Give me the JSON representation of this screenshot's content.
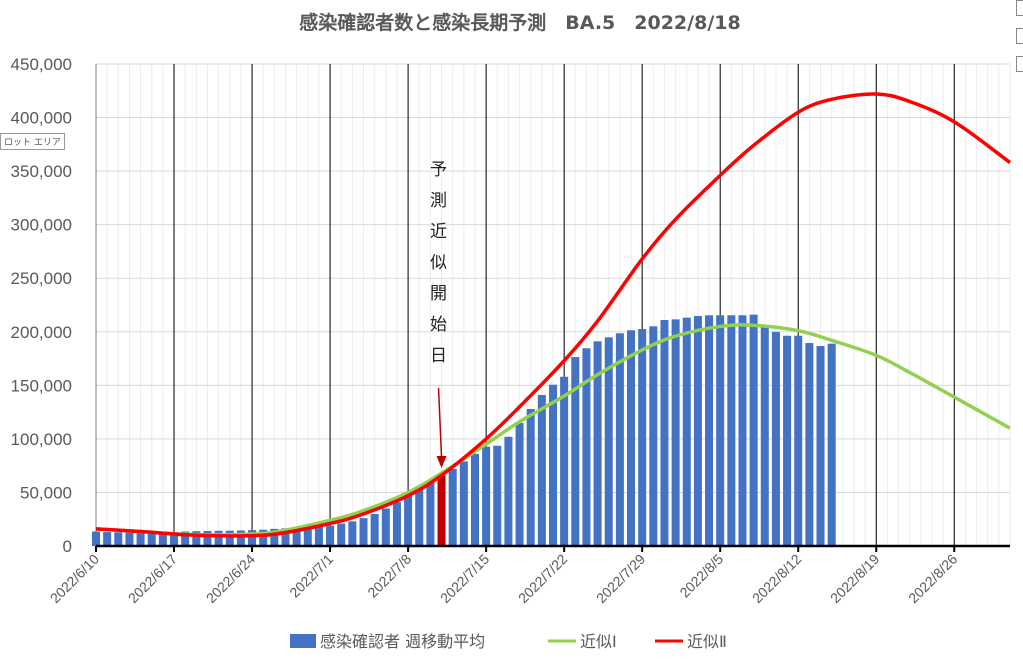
{
  "chart_data": {
    "type": "bar+line",
    "title": "感染確認者数と感染長期予測　BA.5　2022/8/18",
    "xlabel": "",
    "ylabel": "",
    "xlim": [
      "2022/6/10",
      "2022/8/31"
    ],
    "ylim": [
      0,
      450000
    ],
    "yticks": [
      "0",
      "50,000",
      "100,000",
      "150,000",
      "200,000",
      "250,000",
      "300,000",
      "350,000",
      "400,000",
      "450,000"
    ],
    "xticks": [
      "2022/6/10",
      "2022/6/17",
      "2022/6/24",
      "2022/7/1",
      "2022/7/8",
      "2022/7/15",
      "2022/7/22",
      "2022/7/29",
      "2022/8/5",
      "2022/8/12",
      "2022/8/19",
      "2022/8/26"
    ],
    "grid": true,
    "legend_position": "bottom",
    "colors": {
      "bars": "#4472c4",
      "highlight_bar": "#c00000",
      "approx1": "#92d050",
      "approx2": "#ff0000"
    },
    "series": [
      {
        "name": "感染確認者 週移動平均",
        "type": "bar",
        "points": [
          [
            "2022/6/10",
            13500
          ],
          [
            "2022/6/11",
            13000
          ],
          [
            "2022/6/12",
            12800
          ],
          [
            "2022/6/13",
            12500
          ],
          [
            "2022/6/14",
            12300
          ],
          [
            "2022/6/15",
            12200
          ],
          [
            "2022/6/16",
            12500
          ],
          [
            "2022/6/17",
            13000
          ],
          [
            "2022/6/18",
            13500
          ],
          [
            "2022/6/19",
            13800
          ],
          [
            "2022/6/20",
            14000
          ],
          [
            "2022/6/21",
            14200
          ],
          [
            "2022/6/22",
            14300
          ],
          [
            "2022/6/23",
            14500
          ],
          [
            "2022/6/24",
            14800
          ],
          [
            "2022/6/25",
            15200
          ],
          [
            "2022/6/26",
            16000
          ],
          [
            "2022/6/27",
            16500
          ],
          [
            "2022/6/28",
            17000
          ],
          [
            "2022/6/29",
            17500
          ],
          [
            "2022/6/30",
            18200
          ],
          [
            "2022/7/1",
            19000
          ],
          [
            "2022/7/2",
            21000
          ],
          [
            "2022/7/3",
            23000
          ],
          [
            "2022/7/4",
            26000
          ],
          [
            "2022/7/5",
            30000
          ],
          [
            "2022/7/6",
            35000
          ],
          [
            "2022/7/7",
            41000
          ],
          [
            "2022/7/8",
            47000
          ],
          [
            "2022/7/9",
            53000
          ],
          [
            "2022/7/10",
            59000
          ],
          [
            "2022/7/11",
            66000
          ],
          [
            "2022/7/12",
            72000
          ],
          [
            "2022/7/13",
            79000
          ],
          [
            "2022/7/14",
            86000
          ],
          [
            "2022/7/15",
            92700
          ],
          [
            "2022/7/16",
            93600
          ],
          [
            "2022/7/17",
            102000
          ],
          [
            "2022/7/18",
            114800
          ],
          [
            "2022/7/19",
            127900
          ],
          [
            "2022/7/20",
            141000
          ],
          [
            "2022/7/21",
            150600
          ],
          [
            "2022/7/22",
            158000
          ],
          [
            "2022/7/23",
            176400
          ],
          [
            "2022/7/24",
            184600
          ],
          [
            "2022/7/25",
            191100
          ],
          [
            "2022/7/26",
            194800
          ],
          [
            "2022/7/27",
            198600
          ],
          [
            "2022/7/28",
            201400
          ],
          [
            "2022/7/29",
            202600
          ],
          [
            "2022/7/30",
            205100
          ],
          [
            "2022/7/31",
            211000
          ],
          [
            "2022/8/1",
            211600
          ],
          [
            "2022/8/2",
            213200
          ],
          [
            "2022/8/3",
            214700
          ],
          [
            "2022/8/4",
            215400
          ],
          [
            "2022/8/5",
            215400
          ],
          [
            "2022/8/6",
            215400
          ],
          [
            "2022/8/7",
            215400
          ],
          [
            "2022/8/8",
            216000
          ],
          [
            "2022/8/9",
            204200
          ],
          [
            "2022/8/10",
            199800
          ],
          [
            "2022/8/11",
            196300
          ],
          [
            "2022/8/12",
            196300
          ],
          [
            "2022/8/13",
            189500
          ],
          [
            "2022/8/14",
            186700
          ],
          [
            "2022/8/15",
            188900
          ]
        ],
        "highlight": "2022/7/11"
      },
      {
        "name": "近似Ⅰ",
        "type": "line",
        "points": [
          [
            "2022/6/10",
            16000
          ],
          [
            "2022/6/14",
            13500
          ],
          [
            "2022/6/18",
            11000
          ],
          [
            "2022/6/22",
            10500
          ],
          [
            "2022/6/26",
            13000
          ],
          [
            "2022/7/1",
            24000
          ],
          [
            "2022/7/4",
            33000
          ],
          [
            "2022/7/8",
            50000
          ],
          [
            "2022/7/11",
            68000
          ],
          [
            "2022/7/15",
            95000
          ],
          [
            "2022/7/18",
            116000
          ],
          [
            "2022/7/22",
            140000
          ],
          [
            "2022/7/25",
            160000
          ],
          [
            "2022/7/29",
            183000
          ],
          [
            "2022/8/1",
            196000
          ],
          [
            "2022/8/5",
            205000
          ],
          [
            "2022/8/8",
            206000
          ],
          [
            "2022/8/12",
            201000
          ],
          [
            "2022/8/15",
            192000
          ],
          [
            "2022/8/19",
            178000
          ],
          [
            "2022/8/22",
            162000
          ],
          [
            "2022/8/26",
            139000
          ],
          [
            "2022/8/31",
            110000
          ]
        ]
      },
      {
        "name": "近似Ⅱ",
        "type": "line",
        "points": [
          [
            "2022/6/10",
            16000
          ],
          [
            "2022/6/14",
            13500
          ],
          [
            "2022/6/18",
            10500
          ],
          [
            "2022/6/22",
            9500
          ],
          [
            "2022/6/26",
            11000
          ],
          [
            "2022/7/1",
            21000
          ],
          [
            "2022/7/4",
            30000
          ],
          [
            "2022/7/8",
            47000
          ],
          [
            "2022/7/11",
            66000
          ],
          [
            "2022/7/15",
            100000
          ],
          [
            "2022/7/18",
            130000
          ],
          [
            "2022/7/22",
            173000
          ],
          [
            "2022/7/25",
            210000
          ],
          [
            "2022/7/29",
            268000
          ],
          [
            "2022/8/1",
            305000
          ],
          [
            "2022/8/5",
            346000
          ],
          [
            "2022/8/8",
            374000
          ],
          [
            "2022/8/12",
            405000
          ],
          [
            "2022/8/15",
            417000
          ],
          [
            "2022/8/19",
            422000
          ],
          [
            "2022/8/22",
            415000
          ],
          [
            "2022/8/26",
            396000
          ],
          [
            "2022/8/31",
            358000
          ]
        ]
      }
    ],
    "annotation": {
      "text": "予測近似開始日",
      "target": "2022/7/11"
    }
  },
  "ui": {
    "tooltip": "ロット エリア"
  }
}
